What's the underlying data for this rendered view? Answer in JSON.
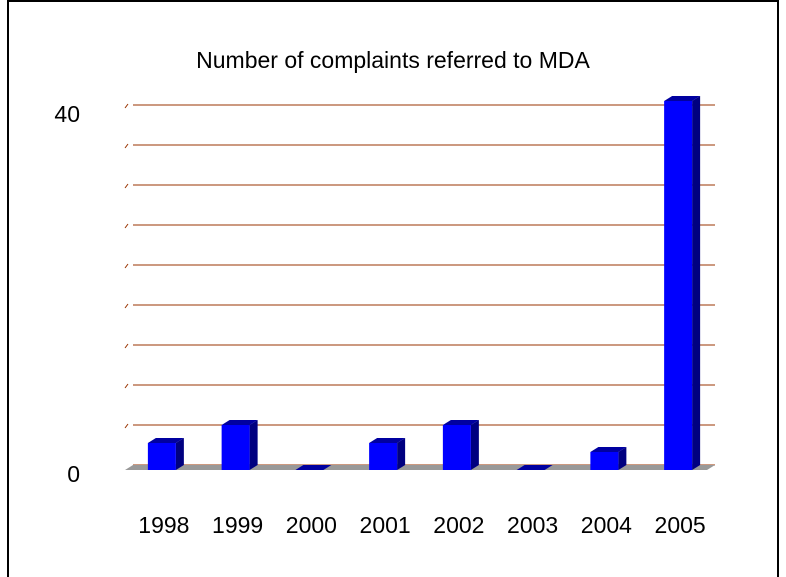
{
  "chart_data": {
    "type": "bar",
    "title": "Number of complaints referred to MDA",
    "categories": [
      "1998",
      "1999",
      "2000",
      "2001",
      "2002",
      "2003",
      "2004",
      "2005"
    ],
    "values": [
      3,
      5,
      0,
      3,
      5,
      0,
      2,
      41
    ],
    "color": "#0000ff",
    "ylim": [
      0,
      40
    ],
    "yticks": [
      0,
      40
    ],
    "grid": true
  }
}
